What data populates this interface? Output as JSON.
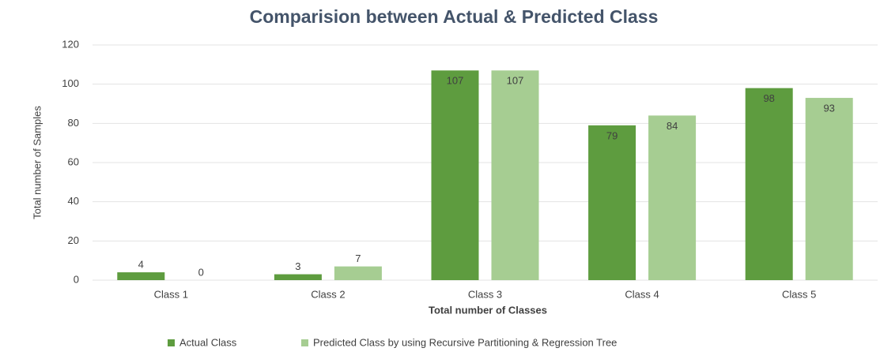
{
  "chart_data": {
    "type": "bar",
    "title": "Comparision between Actual & Predicted Class",
    "x_label": "Total number of Classes",
    "y_label": "Total number of Samples",
    "categories": [
      "Class 1",
      "Class 2",
      "Class 3",
      "Class 4",
      "Class 5"
    ],
    "series": [
      {
        "name": "Actual Class",
        "color": "#5e9c3f",
        "values": [
          4,
          3,
          107,
          79,
          98
        ]
      },
      {
        "name": "Predicted Class by using Recursive Partitioning & Regression Tree",
        "color": "#a6cd92",
        "values": [
          0,
          7,
          107,
          84,
          93
        ]
      }
    ],
    "ylim": [
      0,
      120
    ],
    "yticks": [
      0,
      20,
      40,
      60,
      80,
      100,
      120
    ],
    "grid": true,
    "legend": "bottom"
  }
}
